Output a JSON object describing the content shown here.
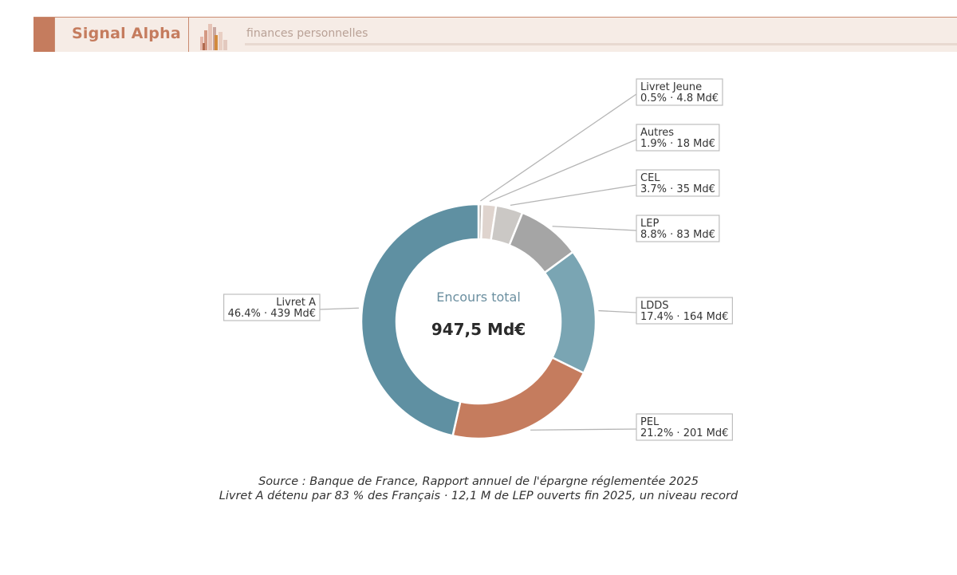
{
  "header": {
    "brand": "Signal Alpha",
    "tagline": "finances personnelles"
  },
  "colors": {
    "accent": "#c57c5e",
    "header_bg": "#f6ece6"
  },
  "chart_data": {
    "type": "pie",
    "variant": "donut",
    "center_label": "Encours total",
    "center_value": "947,5 Md€",
    "unit": "Md€",
    "slices": [
      {
        "label": "Livret Jeune",
        "pct": 0.5,
        "pct_label": "0.5%",
        "value": 4.8,
        "value_label": "4.8 Md€",
        "color": "#b8b3ae"
      },
      {
        "label": "Autres",
        "pct": 1.9,
        "pct_label": "1.9%",
        "value": 18,
        "value_label": "18 Md€",
        "color": "#dfd4ce"
      },
      {
        "label": "CEL",
        "pct": 3.7,
        "pct_label": "3.7%",
        "value": 35,
        "value_label": "35 Md€",
        "color": "#cbc8c5"
      },
      {
        "label": "LEP",
        "pct": 8.8,
        "pct_label": "8.8%",
        "value": 83,
        "value_label": "83 Md€",
        "color": "#a5a5a5"
      },
      {
        "label": "LDDS",
        "pct": 17.4,
        "pct_label": "17.4%",
        "value": 164,
        "value_label": "164 Md€",
        "color": "#7aa5b3"
      },
      {
        "label": "PEL",
        "pct": 21.2,
        "pct_label": "21.2%",
        "value": 201,
        "value_label": "201 Md€",
        "color": "#c57c5e"
      },
      {
        "label": "Livret A",
        "pct": 46.4,
        "pct_label": "46.4%",
        "value": 439,
        "value_label": "439 Md€",
        "color": "#5f90a2"
      }
    ]
  },
  "footer": {
    "line1": "Source : Banque de France, Rapport annuel de l'épargne réglementée 2025",
    "line2": "Livret A détenu par 83 % des Français  ·  12,1 M de LEP ouverts fin 2025, un niveau record"
  }
}
